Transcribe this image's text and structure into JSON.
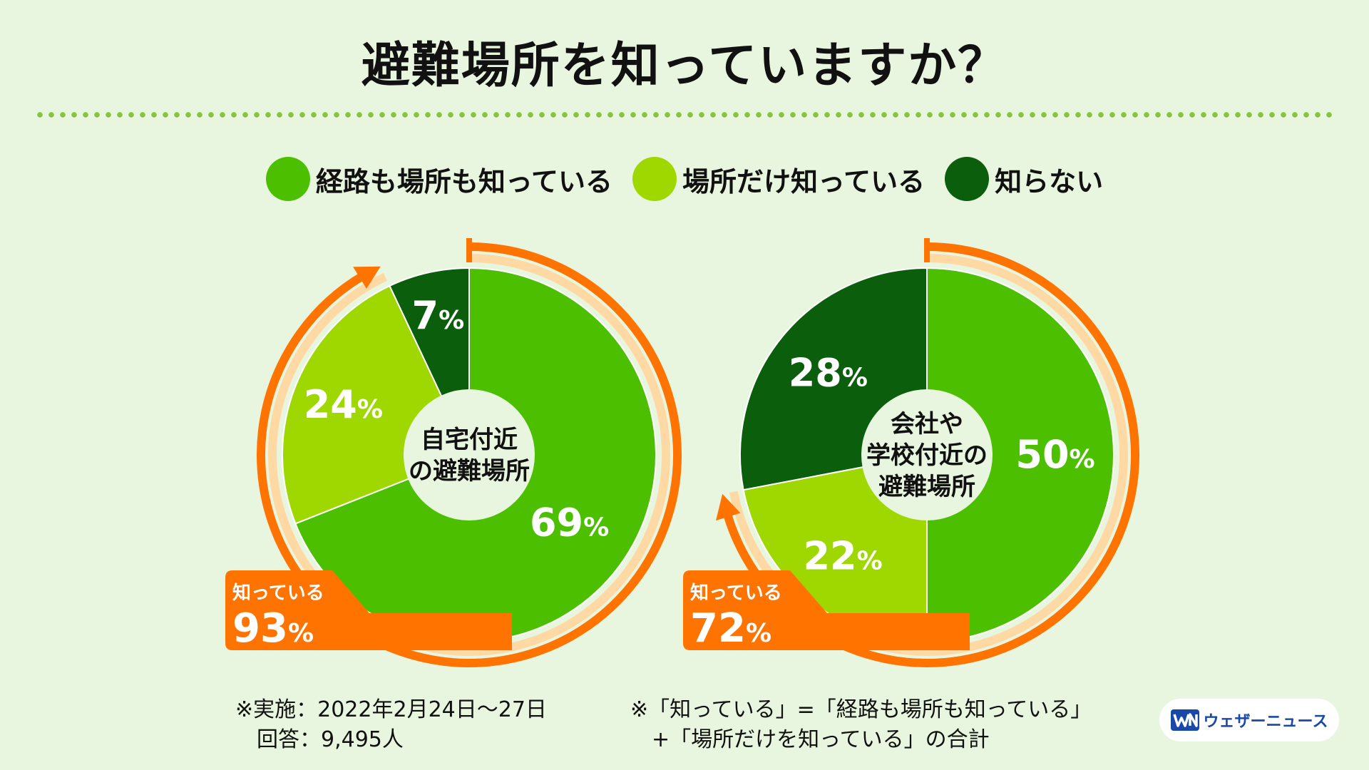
{
  "title": "避難場所を知っていますか？",
  "legend": [
    {
      "label": "経路も場所も知っている",
      "color": "#4cbf00"
    },
    {
      "label": "場所だけ知っている",
      "color": "#9fd800"
    },
    {
      "label": "知らない",
      "color": "#0b5e0b"
    }
  ],
  "chart_data": [
    {
      "type": "pie",
      "center_label": [
        "自宅付近",
        "の避難場所"
      ],
      "categories": [
        "経路も場所も知っている",
        "場所だけ知っている",
        "知らない"
      ],
      "values": [
        69,
        24,
        7
      ],
      "value_labels": [
        "69",
        "24",
        "7"
      ],
      "unit": "%",
      "known_label": "知っている",
      "known_value": "93"
    },
    {
      "type": "pie",
      "center_label": [
        "会社や",
        "学校付近の",
        "避難場所"
      ],
      "categories": [
        "経路も場所も知っている",
        "場所だけ知っている",
        "知らない"
      ],
      "values": [
        50,
        22,
        28
      ],
      "value_labels": [
        "50",
        "22",
        "28"
      ],
      "unit": "%",
      "known_label": "知っている",
      "known_value": "72"
    }
  ],
  "notes": {
    "left": [
      "※実施：2022年2月24日〜27日",
      "　回答：9,495人"
    ],
    "right": [
      "※「知っている」=「経路も場所も知っている」",
      "　+「場所だけを知っている」の合計"
    ]
  },
  "brand": {
    "name": "ウェザーニュース",
    "color": "#1848a8"
  },
  "colors": {
    "arrow": "#ff7300",
    "arrow_inner": "#ffd9a3"
  }
}
